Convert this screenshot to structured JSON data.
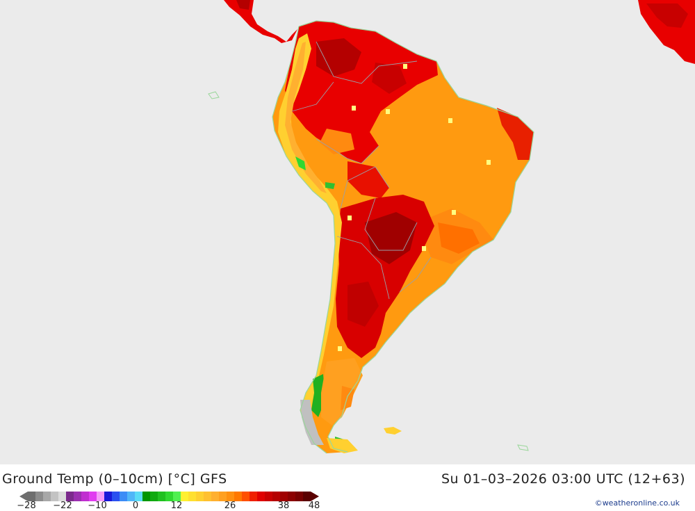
{
  "header": {
    "title": "Ground Temp (0–10cm) [°C] GFS",
    "datetime": "Su 01–03–2026 03:00 UTC (12+63)"
  },
  "legend": {
    "tick_labels": [
      "−28",
      "−22",
      "−10",
      "0",
      "12",
      "26",
      "38",
      "48"
    ],
    "colors": [
      "#6e6e6e",
      "#8c8c8c",
      "#a8a8a8",
      "#c3c3c3",
      "#dcdcdc",
      "#7b2a8c",
      "#9b30b0",
      "#c02fd0",
      "#e03cf0",
      "#f49cf8",
      "#1a1ad8",
      "#2a50f0",
      "#3c8cf6",
      "#50b6f8",
      "#5adcf6",
      "#009600",
      "#10aa10",
      "#20c020",
      "#30d830",
      "#50f050",
      "#fff030",
      "#ffe030",
      "#ffd030",
      "#ffc030",
      "#ffb030",
      "#ffa020",
      "#ff9010",
      "#ff7800",
      "#ff5000",
      "#f02000",
      "#e00000",
      "#c80000",
      "#b40000",
      "#a00000",
      "#8c0000",
      "#780000",
      "#5a0000"
    ]
  },
  "map": {
    "region": "South America",
    "ocean_color": "#ebebeb",
    "land_color_scale": [
      "#50f050",
      "#fff030",
      "#ffc030",
      "#ff9010",
      "#f02000",
      "#c80000",
      "#8c0000"
    ]
  },
  "credit": "©weatheronline.co.uk"
}
